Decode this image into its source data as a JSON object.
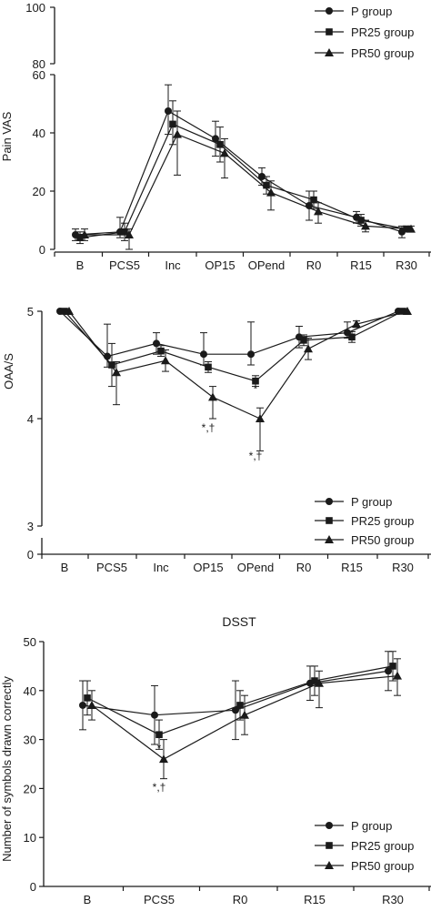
{
  "chart_data": [
    {
      "type": "line",
      "title": "",
      "ylabel": "Pain VAS",
      "xlabel": "",
      "ylim": [
        0,
        100
      ],
      "axis_break": [
        60,
        80
      ],
      "yticks": [
        0,
        20,
        40,
        60,
        80,
        100
      ],
      "categories": [
        "B",
        "PCS5",
        "Inc",
        "OP15",
        "OPend",
        "R0",
        "R15",
        "R30"
      ],
      "legend": {
        "position": "top-right"
      },
      "series": [
        {
          "name": "P group",
          "marker": "circle",
          "values": [
            5,
            6,
            47.5,
            38,
            25,
            15,
            11,
            6
          ],
          "err_plus": [
            2,
            5,
            9,
            6,
            3,
            5,
            2,
            2
          ],
          "err_minus": [
            2,
            2,
            8,
            6,
            3,
            5,
            2,
            2
          ]
        },
        {
          "name": "PR25 group",
          "marker": "square",
          "values": [
            4,
            6,
            43,
            36,
            22,
            17,
            10,
            7
          ],
          "err_plus": [
            2,
            3,
            8,
            6,
            3,
            3,
            2,
            1
          ],
          "err_minus": [
            2,
            3,
            7,
            6,
            3,
            3,
            2,
            1
          ]
        },
        {
          "name": "PR50 group",
          "marker": "triangle",
          "values": [
            5,
            5,
            39.5,
            33,
            19.5,
            13,
            8,
            7
          ],
          "err_plus": [
            2,
            2,
            8,
            5,
            4,
            3,
            2,
            1
          ],
          "err_minus": [
            2,
            5,
            14,
            8.5,
            6,
            4,
            2,
            1
          ]
        }
      ],
      "annotations": []
    },
    {
      "type": "line",
      "title": "",
      "ylabel": "OAA/S",
      "xlabel": "",
      "ylim": [
        0,
        5
      ],
      "axis_break": [
        0,
        3
      ],
      "yticks": [
        0,
        3,
        4,
        5
      ],
      "categories": [
        "B",
        "PCS5",
        "Inc",
        "OP15",
        "OPend",
        "R0",
        "R15",
        "R30"
      ],
      "legend": {
        "position": "bottom-right"
      },
      "series": [
        {
          "name": "P group",
          "marker": "circle",
          "values": [
            5,
            4.58,
            4.7,
            4.6,
            4.6,
            4.76,
            4.8,
            5
          ],
          "err_plus": [
            0,
            0.3,
            0.1,
            0.2,
            0.3,
            0.1,
            0.1,
            0
          ],
          "err_minus": [
            0,
            0.1,
            0.1,
            0.1,
            0.1,
            0.1,
            0.05,
            0
          ]
        },
        {
          "name": "PR25 group",
          "marker": "square",
          "values": [
            5,
            4.5,
            4.63,
            4.48,
            4.35,
            4.73,
            4.76,
            5
          ],
          "err_plus": [
            0,
            0.2,
            0.05,
            0.05,
            0.05,
            0.05,
            0.05,
            0
          ],
          "err_minus": [
            0,
            0.2,
            0.05,
            0.05,
            0.05,
            0.05,
            0.05,
            0
          ]
        },
        {
          "name": "PR50 group",
          "marker": "triangle",
          "values": [
            5,
            4.43,
            4.54,
            4.2,
            4.0,
            4.65,
            4.88,
            5
          ],
          "err_plus": [
            0,
            0.1,
            0.1,
            0.1,
            0.1,
            0.1,
            0.03,
            0
          ],
          "err_minus": [
            0,
            0.3,
            0.1,
            0.2,
            0.3,
            0.1,
            0.03,
            0
          ]
        }
      ],
      "annotations": [
        {
          "category": "OP15",
          "value": 3.88,
          "text": "*,†"
        },
        {
          "category": "OPend",
          "value": 4.24,
          "text": "*"
        },
        {
          "category": "OPend",
          "value": 3.62,
          "text": "*,†"
        }
      ]
    },
    {
      "type": "line",
      "title": "DSST",
      "ylabel": "Number of symbols drawn correctly",
      "xlabel": "",
      "ylim": [
        0,
        50
      ],
      "yticks": [
        0,
        10,
        20,
        30,
        40,
        50
      ],
      "categories": [
        "B",
        "PCS5",
        "R0",
        "R15",
        "R30"
      ],
      "legend": {
        "position": "bottom-right"
      },
      "series": [
        {
          "name": "P group",
          "marker": "circle",
          "values": [
            37,
            35,
            36,
            41.5,
            44
          ],
          "err_plus": [
            5,
            6,
            6,
            3.5,
            4
          ],
          "err_minus": [
            5,
            6,
            6,
            3.5,
            4
          ]
        },
        {
          "name": "PR25 group",
          "marker": "square",
          "values": [
            38.5,
            31,
            37,
            42,
            45
          ],
          "err_plus": [
            3.5,
            3,
            3,
            3,
            3
          ],
          "err_minus": [
            3.5,
            3,
            3,
            3,
            3
          ]
        },
        {
          "name": "PR50 group",
          "marker": "triangle",
          "values": [
            37,
            26,
            35,
            41.5,
            43
          ],
          "err_plus": [
            3,
            4,
            4,
            2.5,
            3.5
          ],
          "err_minus": [
            3,
            4,
            4,
            5,
            4
          ]
        }
      ],
      "annotations": [
        {
          "category": "PCS5",
          "value": 27.5,
          "text": "*"
        },
        {
          "category": "PCS5",
          "value": 19.5,
          "text": "*,†"
        }
      ]
    }
  ]
}
